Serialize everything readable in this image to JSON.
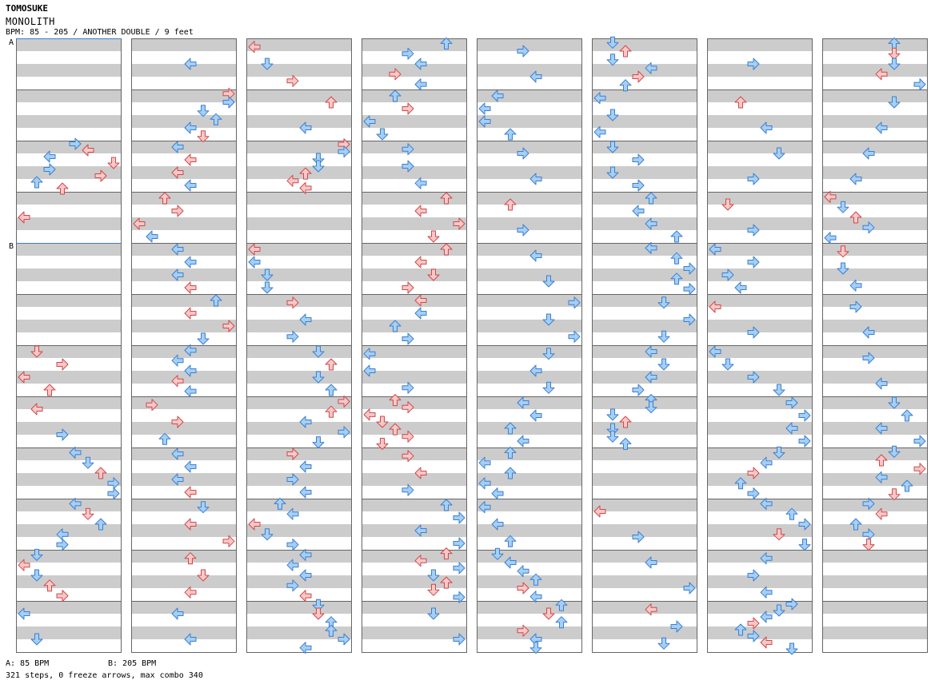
{
  "header": {
    "author": "TOMOSUKE",
    "song_title": "MONOLITH",
    "info": "BPM: 85 - 205 / ANOTHER DOUBLE / 9 feet"
  },
  "markers": {
    "a": "A",
    "b": "B"
  },
  "footer": {
    "bpm_a": "A: 85 BPM",
    "bpm_b": "B: 205 BPM",
    "stats": "321 steps, 0 freeze arrows, max combo 340"
  },
  "colors": {
    "blue_fill": "#a5cff5",
    "blue_stroke": "#3a7fd0",
    "red_fill": "#f8c8c8",
    "red_stroke": "#d04848",
    "stripe": "#cccccc",
    "border": "#666666",
    "bpm_line": "#3a7fd0"
  },
  "chart": {
    "columns": 8,
    "measures_per_column": 12,
    "bpm_change_measures": [
      0,
      4
    ],
    "note_colors": {
      "L": "red",
      "D": "red",
      "U": "red",
      "R": "red",
      "l": "blue",
      "d": "blue",
      "u": "blue",
      "r": "blue"
    },
    "notes": [
      [
        [],
        [],
        [
          "4:r",
          "5:L",
          "2:l",
          "7:D",
          "2:r",
          "6:R",
          "1:u",
          "3:U"
        ],
        [
          "0:L"
        ],
        [],
        [],
        [
          "1:D",
          "3:R",
          "0:L",
          "2:U"
        ],
        [
          "1:L",
          "3:r"
        ],
        [
          "4:l",
          "5:d",
          "6:U",
          "7:r",
          "7:r"
        ],
        [
          "4:l",
          "5:D",
          "6:u",
          "3:l",
          "3:r"
        ],
        [
          "1:d",
          "0:L",
          "1:d",
          "2:U",
          "3:R"
        ],
        [
          "0:l",
          "1:d"
        ]
      ],
      [
        [
          "4:l"
        ],
        [
          "7:R",
          "7:r",
          "5:d",
          "6:u",
          "4:l",
          "5:D"
        ],
        [
          "3:l",
          "4:L",
          "3:L",
          "4:l"
        ],
        [
          "2:U",
          "3:R",
          "0:L",
          "1:l"
        ],
        [
          "3:l",
          "4:l",
          "3:l",
          "4:L"
        ],
        [
          "6:u",
          "4:L",
          "7:R",
          "5:d"
        ],
        [
          "4:l",
          "3:l",
          "4:l",
          "3:L",
          "4:l"
        ],
        [
          "1:R",
          "3:R",
          "2:u"
        ],
        [
          "3:l",
          "4:l",
          "3:l",
          "4:L"
        ],
        [
          "5:d",
          "4:L",
          "7:R"
        ],
        [
          "4:U",
          "5:D",
          "4:L"
        ],
        [
          "3:l",
          "4:l"
        ]
      ],
      [
        [
          "0:L",
          "1:d",
          "3:R"
        ],
        [
          "6:U",
          "4:l"
        ],
        [
          "7:R",
          "7:r",
          "5:d",
          "5:d",
          "4:U",
          "3:L",
          "4:L"
        ],
        [],
        [
          "0:L",
          "0:l",
          "1:d",
          "1:d"
        ],
        [
          "3:R",
          "4:l",
          "3:r"
        ],
        [
          "5:d",
          "6:U",
          "5:d",
          "6:u"
        ],
        [
          "7:R",
          "6:U",
          "4:l",
          "7:r",
          "5:d"
        ],
        [
          "3:R",
          "4:l",
          "3:r",
          "4:l"
        ],
        [
          "2:u",
          "3:l",
          "0:L",
          "1:d",
          "3:r"
        ],
        [
          "4:l",
          "3:l",
          "4:l",
          "3:r",
          "4:L"
        ],
        [
          "5:d",
          "5:D",
          "6:u",
          "6:u",
          "7:r",
          "4:l"
        ]
      ],
      [
        [
          "6:u",
          "3:r",
          "4:l",
          "2:R",
          "4:l"
        ],
        [
          "2:u",
          "3:R",
          "0:l",
          "1:d"
        ],
        [
          "3:r",
          "3:r",
          "4:l"
        ],
        [
          "6:U",
          "4:L",
          "7:R",
          "5:D"
        ],
        [
          "6:U",
          "4:L",
          "5:D",
          "3:R"
        ],
        [
          "4:L",
          "4:l",
          "2:u",
          "3:r"
        ],
        [
          "0:l",
          "0:l",
          "3:r"
        ],
        [
          "2:U",
          "3:R",
          "0:L",
          "1:D",
          "2:U",
          "3:R",
          "1:D"
        ],
        [
          "3:R",
          "4:L",
          "3:r"
        ],
        [
          "6:u",
          "7:r",
          "4:l",
          "7:r"
        ],
        [
          "6:U",
          "4:L",
          "7:r",
          "5:d",
          "6:U",
          "5:D",
          "7:r"
        ],
        [
          "5:d",
          "7:r"
        ]
      ],
      [
        [
          "3:r",
          "4:l"
        ],
        [
          "1:l",
          "0:l",
          "0:l",
          "2:u"
        ],
        [
          "3:r",
          "4:l"
        ],
        [
          "2:U",
          "3:r"
        ],
        [
          "4:l",
          "5:d"
        ],
        [
          "7:r",
          "5:d",
          "7:r"
        ],
        [
          "5:d",
          "4:l",
          "5:d"
        ],
        [
          "3:l",
          "4:l",
          "2:u",
          "3:l"
        ],
        [
          "2:u",
          "0:l",
          "2:u",
          "0:l",
          "1:l"
        ],
        [
          "0:l",
          "1:l",
          "2:u"
        ],
        [
          "1:d",
          "2:l",
          "3:l",
          "4:u",
          "3:R",
          "4:l"
        ],
        [
          "6:u",
          "5:D",
          "6:u",
          "3:R",
          "4:l",
          "4:d"
        ]
      ],
      [
        [
          "1:d",
          "2:U",
          "1:d",
          "4:l",
          "3:R",
          "2:u"
        ],
        [
          "0:l",
          "1:d",
          "0:l"
        ],
        [
          "1:d",
          "3:r",
          "1:d",
          "3:r"
        ],
        [
          "4:u",
          "3:l",
          "4:l",
          "6:u"
        ],
        [
          "4:l",
          "6:u",
          "7:r",
          "6:u",
          "7:r"
        ],
        [
          "5:d",
          "7:r",
          "5:d"
        ],
        [
          "4:l",
          "5:d",
          "4:l",
          "3:r"
        ],
        [
          "4:u",
          "4:d",
          "1:d",
          "2:U",
          "1:d",
          "1:d",
          "2:u"
        ],
        [],
        [
          "0:L",
          "3:r"
        ],
        [
          "4:l",
          "7:r"
        ],
        [
          "4:L",
          "6:r",
          "5:d"
        ]
      ],
      [
        [
          "3:r"
        ],
        [
          "2:U",
          "4:l"
        ],
        [
          "5:d",
          "3:r"
        ],
        [
          "1:D",
          "3:r"
        ],
        [
          "0:l",
          "3:r",
          "1:r",
          "2:l"
        ],
        [
          "0:L",
          "3:r"
        ],
        [
          "0:l",
          "1:d",
          "3:r",
          "5:d"
        ],
        [
          "6:r",
          "7:r",
          "6:l",
          "7:r"
        ],
        [
          "5:d",
          "4:l",
          "3:R",
          "2:u",
          "3:r"
        ],
        [
          "4:l",
          "6:u",
          "7:r",
          "5:D",
          "7:d"
        ],
        [
          "4:l",
          "3:r",
          "4:l"
        ],
        [
          "6:r",
          "5:d",
          "4:l",
          "3:R",
          "2:u",
          "3:r",
          "4:L",
          "6:d"
        ]
      ],
      [
        [
          "5:u",
          "5:D",
          "5:d",
          "4:L",
          "7:r"
        ],
        [
          "5:d",
          "4:l"
        ],
        [
          "3:l",
          "2:l"
        ],
        [
          "0:L",
          "1:d",
          "2:U",
          "3:r",
          "0:l"
        ],
        [
          "1:D",
          "1:d",
          "2:l"
        ],
        [
          "2:r",
          "3:l"
        ],
        [
          "3:r",
          "4:l"
        ],
        [
          "5:d",
          "6:u",
          "4:l",
          "7:r"
        ],
        [
          "5:d",
          "4:U",
          "7:R",
          "4:l",
          "6:u",
          "5:D"
        ],
        [
          "3:r",
          "4:L",
          "2:u",
          "3:r",
          "3:D"
        ],
        [],
        []
      ]
    ]
  }
}
